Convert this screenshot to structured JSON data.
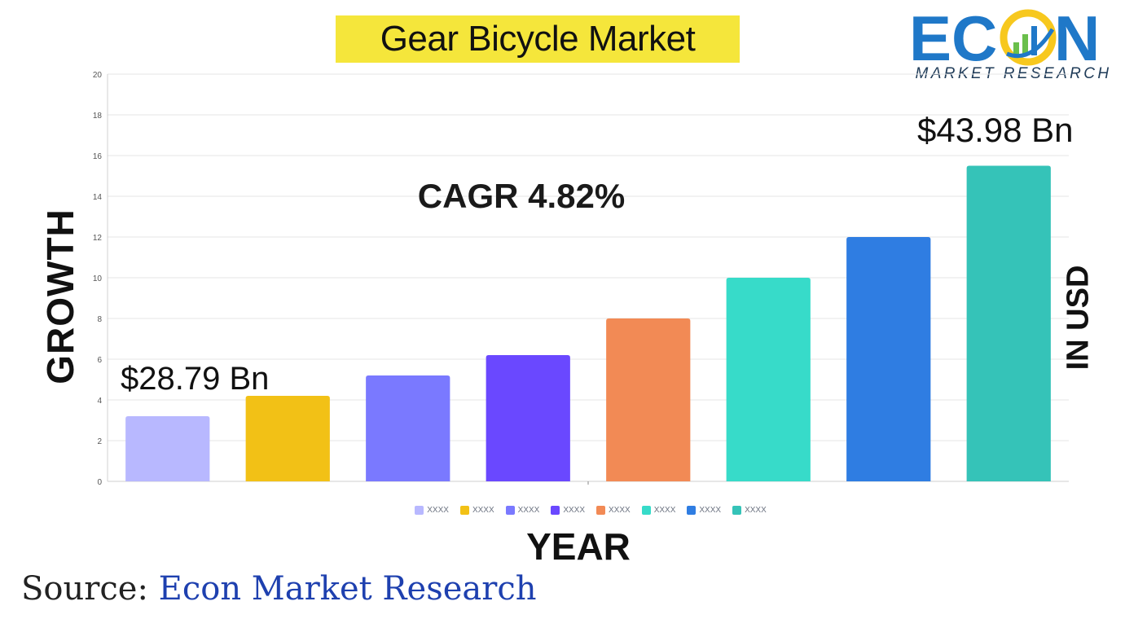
{
  "title": "Gear Bicycle Market",
  "logo": {
    "word": "ECON",
    "subtitle": "MARKET RESEARCH",
    "colors": {
      "primary": "#1f78c8",
      "accent": "#f7c81e",
      "green": "#6abf4b"
    }
  },
  "annotations": {
    "cagr": "CAGR 4.82%",
    "start_value": "$28.79 Bn",
    "end_value": "$43.98 Bn"
  },
  "axis_labels": {
    "y_left": "GROWTH",
    "y_right": "IN USD",
    "x": "YEAR"
  },
  "source": {
    "prefix": "Source: ",
    "name": "Econ Market Research"
  },
  "chart_data": {
    "type": "bar",
    "categories": [
      "XXXX",
      "XXXX",
      "XXXX",
      "XXXX",
      "XXXX",
      "XXXX",
      "XXXX",
      "XXXX"
    ],
    "values": [
      3.2,
      4.2,
      5.2,
      6.2,
      8.0,
      10.0,
      12.0,
      15.5
    ],
    "colors": [
      "#b8b8ff",
      "#f2c116",
      "#7a79ff",
      "#6a48ff",
      "#f28a55",
      "#37dbc9",
      "#2f7de2",
      "#35c3b8"
    ],
    "yticks": [
      0,
      2,
      4,
      6,
      8,
      10,
      12,
      14,
      16,
      18,
      20
    ],
    "ylim": [
      0,
      20
    ],
    "grid": true,
    "legend_position": "bottom",
    "legend": [
      "XXXX",
      "XXXX",
      "XXXX",
      "XXXX",
      "XXXX",
      "XXXX",
      "XXXX",
      "XXXX"
    ]
  }
}
